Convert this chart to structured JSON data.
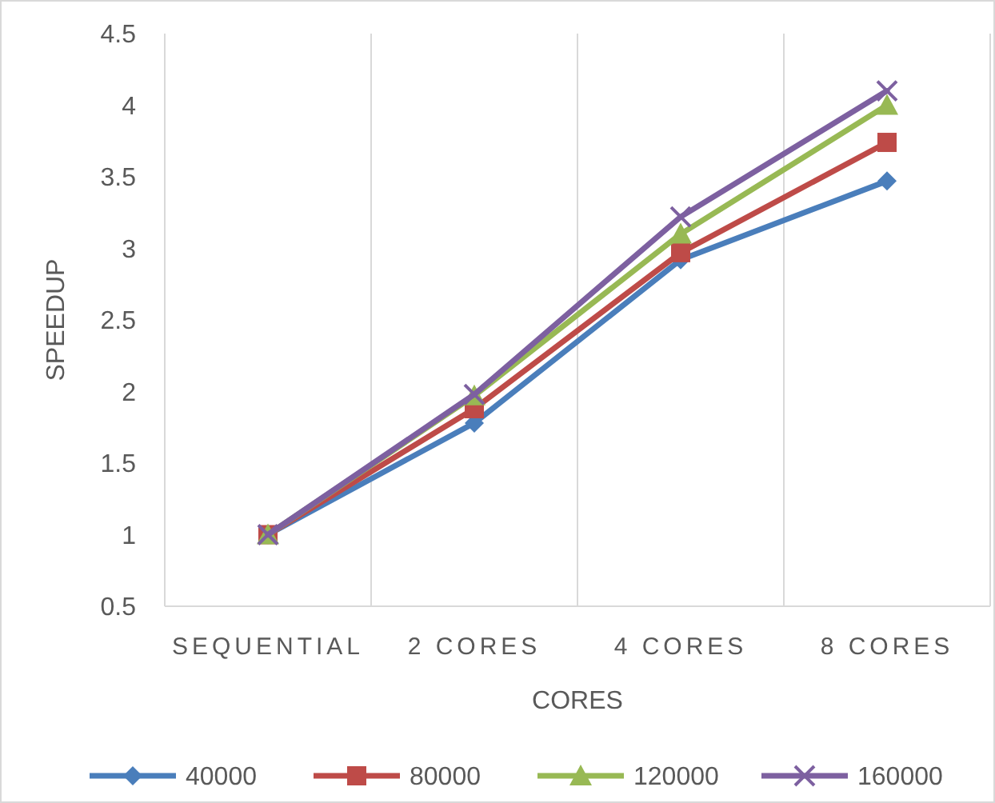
{
  "chart_data": {
    "type": "line",
    "xlabel": "CORES",
    "ylabel": "SPEEDUP",
    "categories": [
      "SEQUENTIAL",
      "2 CORES",
      "4 CORES",
      "8 CORES"
    ],
    "ylim": [
      0.5,
      4.5
    ],
    "yticks": [
      0.5,
      1,
      1.5,
      2,
      2.5,
      3,
      3.5,
      4,
      4.5
    ],
    "grid": "x",
    "legend": "bottom",
    "line_style": "solid",
    "series": [
      {
        "name": "40000",
        "color": "#4a7ebb",
        "marker": "diamond",
        "values": [
          1,
          1.78,
          2.92,
          3.47
        ]
      },
      {
        "name": "80000",
        "color": "#be4b48",
        "marker": "square",
        "values": [
          1,
          1.88,
          2.97,
          3.74
        ]
      },
      {
        "name": "120000",
        "color": "#98b954",
        "marker": "triangle",
        "values": [
          1,
          1.97,
          3.1,
          4.0
        ]
      },
      {
        "name": "160000",
        "color": "#7d60a0",
        "marker": "cross",
        "values": [
          1,
          1.98,
          3.22,
          4.1
        ]
      }
    ]
  }
}
